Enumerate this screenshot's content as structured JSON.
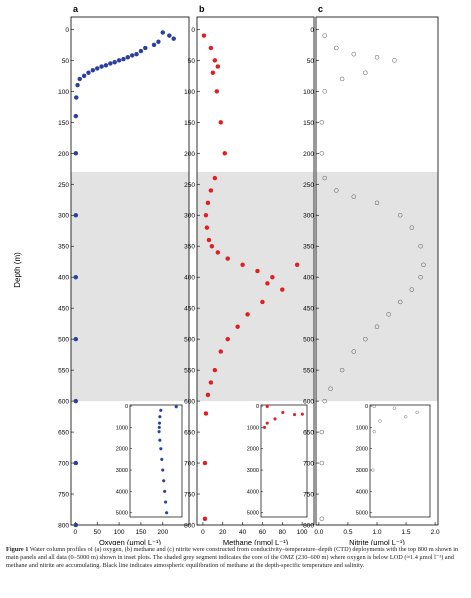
{
  "figure_label": "Figure 1",
  "caption": "Water column profiles of (a) oxygen, (b) methane and (c) nitrite were constructed from conductivity–temperature–depth (CTD) deployments with the top 800 m shown in main panels and all data (0–5000 m) shown in inset plots. The shaded grey segment indicates the core of the OMZ (230–600 m) where oxygen is below LOD (≈1.4 μmol l⁻¹) and methane and nitrite are accumulating. Black line indicates atmospheric equilibration of methane at the depth-specific temperature and salinity.",
  "colors": {
    "oxygen": "#2b3fa0",
    "methane": "#e01e24",
    "nitrite_stroke": "#555555",
    "shade": "#e3e3e3"
  },
  "chart_data": [
    {
      "type": "scatter",
      "panel": "a",
      "ylabel": "Depth (m)",
      "xlabel": "Oxygen (μmol L⁻¹)",
      "xlim": [
        -10,
        260
      ],
      "ylim": [
        800,
        -20
      ],
      "xticks": [
        0,
        50,
        100,
        150,
        200
      ],
      "yticks": [
        0,
        50,
        100,
        150,
        200,
        250,
        300,
        350,
        400,
        450,
        500,
        550,
        600,
        650,
        700,
        750,
        800
      ],
      "shaded_depth": [
        230,
        600
      ],
      "series": [
        {
          "x": [
            200,
            215,
            225,
            190,
            180,
            160,
            150,
            140,
            130,
            120,
            110,
            100,
            90,
            80,
            70,
            60,
            50,
            40,
            30,
            20,
            10,
            5,
            2,
            1,
            1,
            1,
            1,
            1,
            1,
            1,
            1
          ],
          "y": [
            5,
            10,
            15,
            20,
            25,
            30,
            35,
            40,
            42,
            45,
            48,
            50,
            53,
            55,
            58,
            60,
            63,
            66,
            70,
            75,
            80,
            90,
            110,
            140,
            200,
            300,
            400,
            500,
            600,
            700,
            800
          ]
        }
      ],
      "inset": {
        "ylim": [
          5200,
          -50
        ],
        "xlim": [
          -10,
          260
        ],
        "yticks": [
          0,
          1000,
          2000,
          3000,
          4000,
          5000
        ],
        "x": [
          230,
          150,
          145,
          143,
          142,
          141,
          145,
          150,
          155,
          160,
          165,
          170,
          175,
          180
        ],
        "y": [
          30,
          200,
          500,
          800,
          1000,
          1200,
          1600,
          2000,
          2500,
          3000,
          3500,
          4000,
          4500,
          5000
        ]
      }
    },
    {
      "type": "scatter",
      "panel": "b",
      "xlabel": "Methane (nmol L⁻¹)",
      "xlim": [
        -6,
        112
      ],
      "ylim": [
        800,
        -20
      ],
      "xticks": [
        0,
        20,
        40,
        60,
        80,
        100
      ],
      "series": [
        {
          "x": [
            1,
            8,
            12,
            15,
            10,
            14,
            18,
            22,
            12,
            8,
            5,
            3,
            4,
            6,
            9,
            15,
            25,
            40,
            55,
            70,
            65,
            80,
            95,
            60,
            45,
            35,
            25,
            18,
            12,
            8,
            5,
            3,
            2,
            2
          ],
          "y": [
            10,
            30,
            50,
            60,
            70,
            100,
            150,
            200,
            240,
            260,
            280,
            300,
            320,
            340,
            350,
            360,
            370,
            380,
            390,
            400,
            410,
            420,
            380,
            440,
            460,
            480,
            500,
            520,
            550,
            570,
            590,
            620,
            700,
            790
          ]
        }
      ],
      "inset": {
        "ylim": [
          5200,
          -50
        ],
        "xlim": [
          -6,
          112
        ],
        "yticks": [
          0,
          1000,
          2000,
          3000,
          4000,
          5000
        ],
        "x": [
          10,
          50,
          80,
          100,
          30,
          10,
          3
        ],
        "y": [
          20,
          300,
          400,
          380,
          600,
          800,
          1000
        ]
      }
    },
    {
      "type": "scatter",
      "panel": "c",
      "xlabel": "Nitrite (μmol L⁻¹)",
      "xlim": [
        -0.05,
        2.05
      ],
      "ylim": [
        800,
        -20
      ],
      "xticks": [
        0.0,
        0.5,
        1.0,
        1.5,
        2.0
      ],
      "series": [
        {
          "x": [
            0.1,
            0.3,
            0.6,
            1.0,
            1.3,
            0.8,
            0.4,
            0.1,
            0.05,
            0.05,
            0.1,
            0.3,
            0.6,
            1.0,
            1.4,
            1.6,
            1.75,
            1.8,
            1.75,
            1.6,
            1.4,
            1.2,
            1.0,
            0.8,
            0.6,
            0.4,
            0.2,
            0.1,
            0.05,
            0.05,
            0.05
          ],
          "y": [
            10,
            30,
            40,
            45,
            50,
            70,
            80,
            100,
            150,
            200,
            240,
            260,
            270,
            280,
            300,
            320,
            350,
            380,
            400,
            420,
            440,
            460,
            480,
            500,
            520,
            550,
            580,
            600,
            650,
            700,
            790
          ]
        }
      ],
      "inset": {
        "ylim": [
          5200,
          -50
        ],
        "xlim": [
          -0.05,
          2.05
        ],
        "yticks": [
          0,
          1000,
          2000,
          3000,
          4000,
          5000
        ],
        "x": [
          0.1,
          0.8,
          1.6,
          1.2,
          0.3,
          0.1,
          0.05
        ],
        "y": [
          20,
          100,
          300,
          500,
          700,
          1200,
          3000
        ]
      }
    }
  ]
}
